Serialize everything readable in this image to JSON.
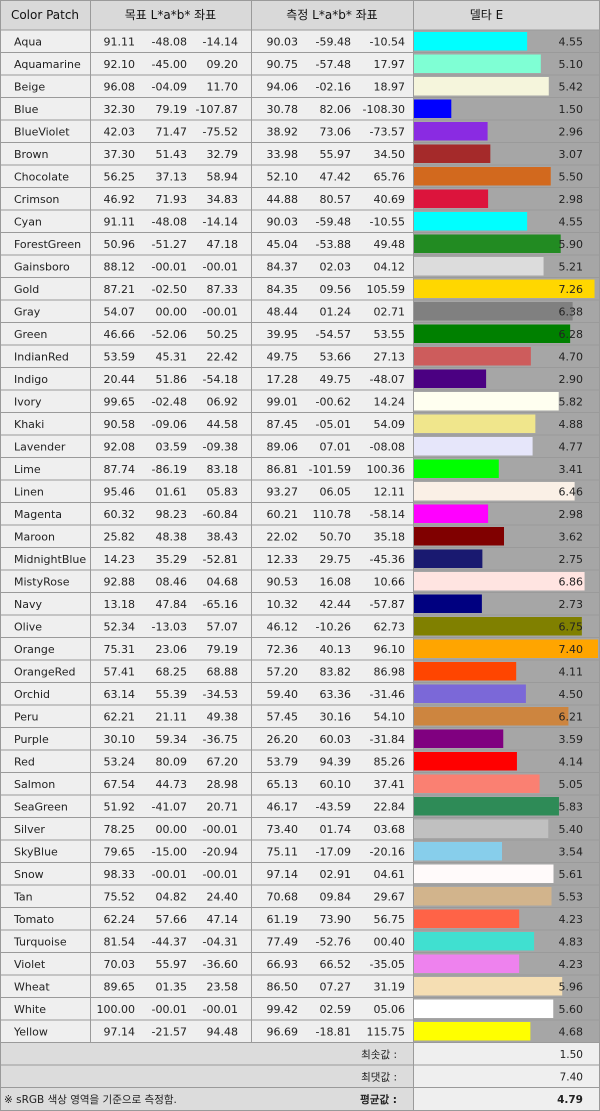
{
  "header": {
    "patch": "Color Patch",
    "target": "목표 L*a*b* 좌표",
    "measured": "측정 L*a*b* 좌표",
    "delta": "델타 E"
  },
  "footer": {
    "note": "※ sRGB 색상 영역을 기준으로 측정함.",
    "min_label": "최솟값 :",
    "min_value": "1.50",
    "max_label": "최댓값 :",
    "max_value": "7.40",
    "avg_label": "평균값 :",
    "avg_value": "4.79"
  },
  "chart_data": {
    "type": "bar",
    "xlim": [
      0,
      7.4
    ],
    "rows": [
      {
        "name": "Aqua",
        "target": [
          "91.11",
          "-48.08",
          "-14.14"
        ],
        "measured": [
          "90.03",
          "-59.48",
          "-10.54"
        ],
        "delta": 4.55,
        "delta_label": "4.55",
        "color": "#00FFFF"
      },
      {
        "name": "Aquamarine",
        "target": [
          "92.10",
          "-45.00",
          "09.20"
        ],
        "measured": [
          "90.75",
          "-57.48",
          "17.97"
        ],
        "delta": 5.1,
        "delta_label": "5.10",
        "color": "#7FFFD4"
      },
      {
        "name": "Beige",
        "target": [
          "96.08",
          "-04.09",
          "11.70"
        ],
        "measured": [
          "94.06",
          "-02.16",
          "18.97"
        ],
        "delta": 5.42,
        "delta_label": "5.42",
        "color": "#F5F5DC"
      },
      {
        "name": "Blue",
        "target": [
          "32.30",
          "79.19",
          "-107.87"
        ],
        "measured": [
          "30.78",
          "82.06",
          "-108.30"
        ],
        "delta": 1.5,
        "delta_label": "1.50",
        "color": "#0000FF"
      },
      {
        "name": "BlueViolet",
        "target": [
          "42.03",
          "71.47",
          "-75.52"
        ],
        "measured": [
          "38.92",
          "73.06",
          "-73.57"
        ],
        "delta": 2.96,
        "delta_label": "2.96",
        "color": "#8A2BE2"
      },
      {
        "name": "Brown",
        "target": [
          "37.30",
          "51.43",
          "32.79"
        ],
        "measured": [
          "33.98",
          "55.97",
          "34.50"
        ],
        "delta": 3.07,
        "delta_label": "3.07",
        "color": "#A52A2A"
      },
      {
        "name": "Chocolate",
        "target": [
          "56.25",
          "37.13",
          "58.94"
        ],
        "measured": [
          "52.10",
          "47.42",
          "65.76"
        ],
        "delta": 5.5,
        "delta_label": "5.50",
        "color": "#D2691E"
      },
      {
        "name": "Crimson",
        "target": [
          "46.92",
          "71.93",
          "34.83"
        ],
        "measured": [
          "44.88",
          "80.57",
          "40.69"
        ],
        "delta": 2.98,
        "delta_label": "2.98",
        "color": "#DC143C"
      },
      {
        "name": "Cyan",
        "target": [
          "91.11",
          "-48.08",
          "-14.14"
        ],
        "measured": [
          "90.03",
          "-59.48",
          "-10.55"
        ],
        "delta": 4.55,
        "delta_label": "4.55",
        "color": "#00FFFF"
      },
      {
        "name": "ForestGreen",
        "target": [
          "50.96",
          "-51.27",
          "47.18"
        ],
        "measured": [
          "45.04",
          "-53.88",
          "49.48"
        ],
        "delta": 5.9,
        "delta_label": "5.90",
        "color": "#228B22"
      },
      {
        "name": "Gainsboro",
        "target": [
          "88.12",
          "-00.01",
          "-00.01"
        ],
        "measured": [
          "84.37",
          "02.03",
          "04.12"
        ],
        "delta": 5.21,
        "delta_label": "5.21",
        "color": "#DCDCDC"
      },
      {
        "name": "Gold",
        "target": [
          "87.21",
          "-02.50",
          "87.33"
        ],
        "measured": [
          "84.35",
          "09.56",
          "105.59"
        ],
        "delta": 7.26,
        "delta_label": "7.26",
        "color": "#FFD700"
      },
      {
        "name": "Gray",
        "target": [
          "54.07",
          "00.00",
          "-00.01"
        ],
        "measured": [
          "48.44",
          "01.24",
          "02.71"
        ],
        "delta": 6.38,
        "delta_label": "6.38",
        "color": "#808080"
      },
      {
        "name": "Green",
        "target": [
          "46.66",
          "-52.06",
          "50.25"
        ],
        "measured": [
          "39.95",
          "-54.57",
          "53.55"
        ],
        "delta": 6.28,
        "delta_label": "6.28",
        "color": "#008000"
      },
      {
        "name": "IndianRed",
        "target": [
          "53.59",
          "45.31",
          "22.42"
        ],
        "measured": [
          "49.75",
          "53.66",
          "27.13"
        ],
        "delta": 4.7,
        "delta_label": "4.70",
        "color": "#CD5C5C"
      },
      {
        "name": "Indigo",
        "target": [
          "20.44",
          "51.86",
          "-54.18"
        ],
        "measured": [
          "17.28",
          "49.75",
          "-48.07"
        ],
        "delta": 2.9,
        "delta_label": "2.90",
        "color": "#4B0082"
      },
      {
        "name": "Ivory",
        "target": [
          "99.65",
          "-02.48",
          "06.92"
        ],
        "measured": [
          "99.01",
          "-00.62",
          "14.24"
        ],
        "delta": 5.82,
        "delta_label": "5.82",
        "color": "#FFFFF0"
      },
      {
        "name": "Khaki",
        "target": [
          "90.58",
          "-09.06",
          "44.58"
        ],
        "measured": [
          "87.45",
          "-05.01",
          "54.09"
        ],
        "delta": 4.88,
        "delta_label": "4.88",
        "color": "#F0E68C"
      },
      {
        "name": "Lavender",
        "target": [
          "92.08",
          "03.59",
          "-09.38"
        ],
        "measured": [
          "89.06",
          "07.01",
          "-08.08"
        ],
        "delta": 4.77,
        "delta_label": "4.77",
        "color": "#E6E6FA"
      },
      {
        "name": "Lime",
        "target": [
          "87.74",
          "-86.19",
          "83.18"
        ],
        "measured": [
          "86.81",
          "-101.59",
          "100.36"
        ],
        "delta": 3.41,
        "delta_label": "3.41",
        "color": "#00FF00"
      },
      {
        "name": "Linen",
        "target": [
          "95.46",
          "01.61",
          "05.83"
        ],
        "measured": [
          "93.27",
          "06.05",
          "12.11"
        ],
        "delta": 6.46,
        "delta_label": "6.46",
        "color": "#FAF0E6"
      },
      {
        "name": "Magenta",
        "target": [
          "60.32",
          "98.23",
          "-60.84"
        ],
        "measured": [
          "60.21",
          "110.78",
          "-58.14"
        ],
        "delta": 2.98,
        "delta_label": "2.98",
        "color": "#FF00FF"
      },
      {
        "name": "Maroon",
        "target": [
          "25.82",
          "48.38",
          "38.43"
        ],
        "measured": [
          "22.02",
          "50.70",
          "35.18"
        ],
        "delta": 3.62,
        "delta_label": "3.62",
        "color": "#800000"
      },
      {
        "name": "MidnightBlue",
        "target": [
          "14.23",
          "35.29",
          "-52.81"
        ],
        "measured": [
          "12.33",
          "29.75",
          "-45.36"
        ],
        "delta": 2.75,
        "delta_label": "2.75",
        "color": "#191970"
      },
      {
        "name": "MistyRose",
        "target": [
          "92.88",
          "08.46",
          "04.68"
        ],
        "measured": [
          "90.53",
          "16.08",
          "10.66"
        ],
        "delta": 6.86,
        "delta_label": "6.86",
        "color": "#FFE4E1"
      },
      {
        "name": "Navy",
        "target": [
          "13.18",
          "47.84",
          "-65.16"
        ],
        "measured": [
          "10.32",
          "42.44",
          "-57.87"
        ],
        "delta": 2.73,
        "delta_label": "2.73",
        "color": "#000080"
      },
      {
        "name": "Olive",
        "target": [
          "52.34",
          "-13.03",
          "57.07"
        ],
        "measured": [
          "46.12",
          "-10.26",
          "62.73"
        ],
        "delta": 6.75,
        "delta_label": "6.75",
        "color": "#808000"
      },
      {
        "name": "Orange",
        "target": [
          "75.31",
          "23.06",
          "79.19"
        ],
        "measured": [
          "72.36",
          "40.13",
          "96.10"
        ],
        "delta": 7.4,
        "delta_label": "7.40",
        "color": "#FFA500"
      },
      {
        "name": "OrangeRed",
        "target": [
          "57.41",
          "68.25",
          "68.88"
        ],
        "measured": [
          "57.20",
          "83.82",
          "86.98"
        ],
        "delta": 4.11,
        "delta_label": "4.11",
        "color": "#FF4500"
      },
      {
        "name": "Orchid",
        "target": [
          "63.14",
          "55.39",
          "-34.53"
        ],
        "measured": [
          "59.40",
          "63.36",
          "-31.46"
        ],
        "delta": 4.5,
        "delta_label": "4.50",
        "color": "#7B68D8"
      },
      {
        "name": "Peru",
        "target": [
          "62.21",
          "21.11",
          "49.38"
        ],
        "measured": [
          "57.45",
          "30.16",
          "54.10"
        ],
        "delta": 6.21,
        "delta_label": "6.21",
        "color": "#CD853F"
      },
      {
        "name": "Purple",
        "target": [
          "30.10",
          "59.34",
          "-36.75"
        ],
        "measured": [
          "26.20",
          "60.03",
          "-31.84"
        ],
        "delta": 3.59,
        "delta_label": "3.59",
        "color": "#800080"
      },
      {
        "name": "Red",
        "target": [
          "53.24",
          "80.09",
          "67.20"
        ],
        "measured": [
          "53.79",
          "94.39",
          "85.26"
        ],
        "delta": 4.14,
        "delta_label": "4.14",
        "color": "#FF0000"
      },
      {
        "name": "Salmon",
        "target": [
          "67.54",
          "44.73",
          "28.98"
        ],
        "measured": [
          "65.13",
          "60.10",
          "37.41"
        ],
        "delta": 5.05,
        "delta_label": "5.05",
        "color": "#FA8072"
      },
      {
        "name": "SeaGreen",
        "target": [
          "51.92",
          "-41.07",
          "20.71"
        ],
        "measured": [
          "46.17",
          "-43.59",
          "22.84"
        ],
        "delta": 5.83,
        "delta_label": "5.83",
        "color": "#2E8B57"
      },
      {
        "name": "Silver",
        "target": [
          "78.25",
          "00.00",
          "-00.01"
        ],
        "measured": [
          "73.40",
          "01.74",
          "03.68"
        ],
        "delta": 5.4,
        "delta_label": "5.40",
        "color": "#C0C0C0"
      },
      {
        "name": "SkyBlue",
        "target": [
          "79.65",
          "-15.00",
          "-20.94"
        ],
        "measured": [
          "75.11",
          "-17.09",
          "-20.16"
        ],
        "delta": 3.54,
        "delta_label": "3.54",
        "color": "#87CEEB"
      },
      {
        "name": "Snow",
        "target": [
          "98.33",
          "-00.01",
          "-00.01"
        ],
        "measured": [
          "97.14",
          "02.91",
          "04.61"
        ],
        "delta": 5.61,
        "delta_label": "5.61",
        "color": "#FFFAFA"
      },
      {
        "name": "Tan",
        "target": [
          "75.52",
          "04.82",
          "24.40"
        ],
        "measured": [
          "70.68",
          "09.84",
          "29.67"
        ],
        "delta": 5.53,
        "delta_label": "5.53",
        "color": "#D2B48C"
      },
      {
        "name": "Tomato",
        "target": [
          "62.24",
          "57.66",
          "47.14"
        ],
        "measured": [
          "61.19",
          "73.90",
          "56.75"
        ],
        "delta": 4.23,
        "delta_label": "4.23",
        "color": "#FF6347"
      },
      {
        "name": "Turquoise",
        "target": [
          "81.54",
          "-44.37",
          "-04.31"
        ],
        "measured": [
          "77.49",
          "-52.76",
          "00.40"
        ],
        "delta": 4.83,
        "delta_label": "4.83",
        "color": "#40E0D0"
      },
      {
        "name": "Violet",
        "target": [
          "70.03",
          "55.97",
          "-36.60"
        ],
        "measured": [
          "66.93",
          "66.52",
          "-35.05"
        ],
        "delta": 4.23,
        "delta_label": "4.23",
        "color": "#EE82EE"
      },
      {
        "name": "Wheat",
        "target": [
          "89.65",
          "01.35",
          "23.58"
        ],
        "measured": [
          "86.50",
          "07.27",
          "31.19"
        ],
        "delta": 5.96,
        "delta_label": "5.96",
        "color": "#F5DEB3"
      },
      {
        "name": "White",
        "target": [
          "100.00",
          "-00.01",
          "-00.01"
        ],
        "measured": [
          "99.42",
          "02.59",
          "05.06"
        ],
        "delta": 5.6,
        "delta_label": "5.60",
        "color": "#FFFFFF"
      },
      {
        "name": "Yellow",
        "target": [
          "97.14",
          "-21.57",
          "94.48"
        ],
        "measured": [
          "96.69",
          "-18.81",
          "115.75"
        ],
        "delta": 4.68,
        "delta_label": "4.68",
        "color": "#FFFF00"
      }
    ]
  }
}
